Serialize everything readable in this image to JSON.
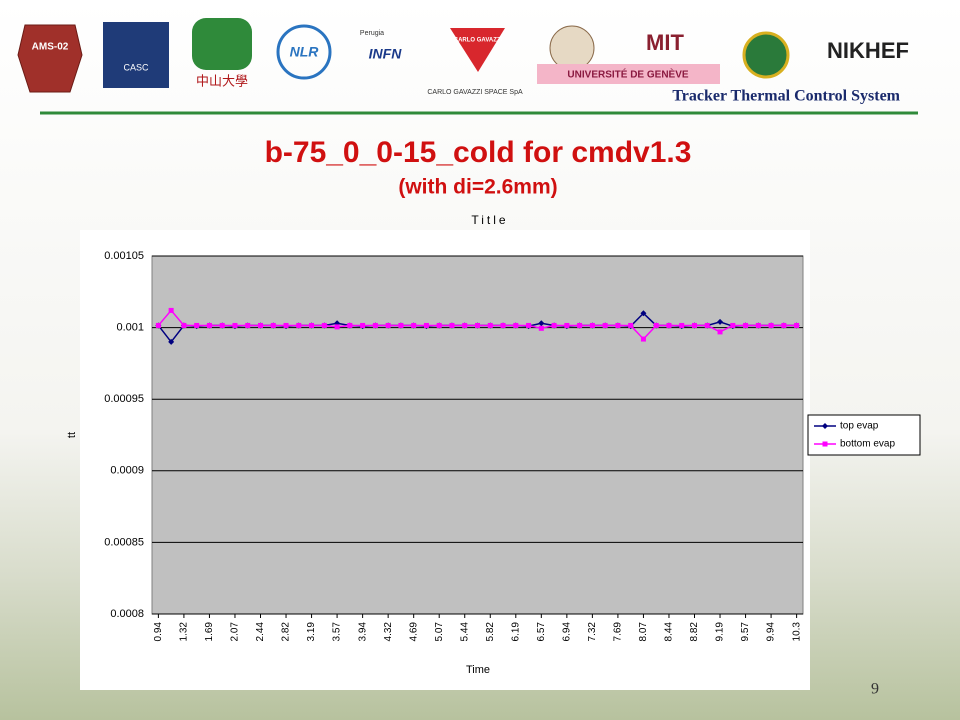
{
  "header": {
    "logos": [
      "AMS-02",
      "CASC",
      "中山大學",
      "NLR",
      "Perugia",
      "INFN",
      "CARLO GAVAZZI",
      "CARLO GAVAZZI SPACE SpA",
      "UNIVERSITÉ DE GENÈVE",
      "MIT",
      "NIKHEF"
    ],
    "tagline": "Tracker Thermal Control System"
  },
  "slide": {
    "title": "b-75_0_0-15_cold for cmdv1.3",
    "subtitle": "(with di=2.6mm)",
    "page": "9"
  },
  "chart_data": {
    "type": "line",
    "title": "Title",
    "x_label": "Time",
    "y_label": "tt",
    "categories": [
      "0.94",
      null,
      "1.32",
      null,
      "1.69",
      null,
      "2.07",
      null,
      "2.44",
      null,
      "2.82",
      null,
      "3.19",
      null,
      "3.57",
      null,
      "3.94",
      null,
      "4.32",
      null,
      "4.69",
      null,
      "5.07",
      null,
      "5.44",
      null,
      "5.82",
      null,
      "6.19",
      null,
      "6.57",
      null,
      "6.94",
      null,
      "7.32",
      null,
      "7.69",
      null,
      "8.07",
      null,
      "8.44",
      null,
      "8.82",
      null,
      "9.19",
      null,
      "9.57",
      null,
      "9.94",
      null,
      "10.3"
    ],
    "series": [
      {
        "name": "top evap",
        "color": "#000080",
        "marker": "diamond",
        "values": [
          0.0010015,
          0.00099,
          0.0010015,
          0.001001,
          0.0010015,
          0.0010015,
          0.001001,
          0.0010015,
          0.0010015,
          0.0010015,
          0.001001,
          0.0010015,
          0.0010015,
          0.0010015,
          0.001003,
          0.0010015,
          0.001001,
          0.0010015,
          0.0010015,
          0.0010015,
          0.0010015,
          0.001001,
          0.0010015,
          0.0010015,
          0.0010015,
          0.0010015,
          0.0010015,
          0.0010015,
          0.0010015,
          0.001001,
          0.001003,
          0.0010015,
          0.001001,
          0.0010015,
          0.0010015,
          0.0010015,
          0.0010015,
          0.001001,
          0.00101,
          0.0010015,
          0.0010015,
          0.001001,
          0.0010015,
          0.0010015,
          0.001004,
          0.001001,
          0.0010015,
          0.0010015,
          0.0010015,
          0.0010015,
          0.0010015
        ]
      },
      {
        "name": "bottom evap",
        "color": "#ff00ff",
        "marker": "square",
        "values": [
          0.0010015,
          0.001012,
          0.0010015,
          0.0010015,
          0.0010015,
          0.0010015,
          0.0010015,
          0.0010015,
          0.0010015,
          0.0010015,
          0.0010015,
          0.0010015,
          0.0010015,
          0.0010015,
          0.0010005,
          0.0010015,
          0.0010015,
          0.0010015,
          0.0010015,
          0.0010015,
          0.0010015,
          0.0010015,
          0.0010015,
          0.0010015,
          0.0010015,
          0.0010015,
          0.0010015,
          0.0010015,
          0.0010015,
          0.0010015,
          0.0009995,
          0.0010015,
          0.0010015,
          0.0010015,
          0.0010015,
          0.0010015,
          0.0010015,
          0.0010015,
          0.000992,
          0.0010015,
          0.0010015,
          0.0010015,
          0.0010015,
          0.0010015,
          0.000997,
          0.0010015,
          0.0010015,
          0.0010015,
          0.0010015,
          0.0010015,
          0.0010015
        ]
      }
    ],
    "ylim": [
      0.0008,
      0.00105
    ],
    "yticks": [
      0.0008,
      0.00085,
      0.0009,
      0.00095,
      0.001,
      0.00105
    ],
    "grid": true,
    "legend": "right",
    "plot_background": "#c0c0c0"
  }
}
